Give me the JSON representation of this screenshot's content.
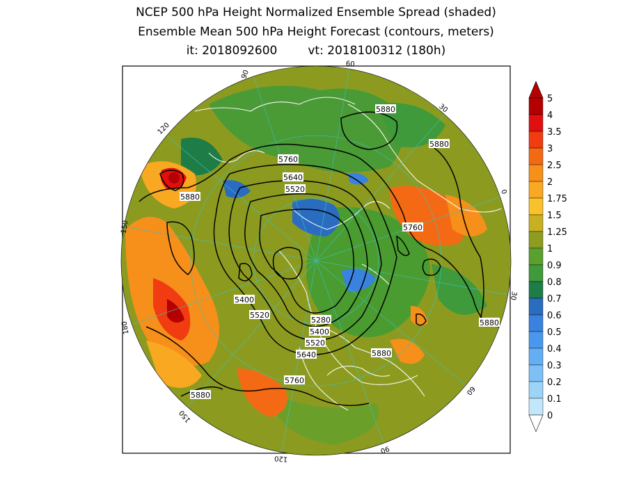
{
  "title": {
    "line1": "NCEP 500 hPa Height Normalized Ensemble Spread (shaded)",
    "line2": "Ensemble Mean 500 hPa Height Forecast (contours, meters)",
    "it": "it: 2018092600",
    "vt": "vt: 2018100312 (180h)"
  },
  "colorbar": {
    "levels": [
      "5",
      "4",
      "3.5",
      "3",
      "2.5",
      "2",
      "1.75",
      "1.5",
      "1.25",
      "1",
      "0.9",
      "0.8",
      "0.7",
      "0.6",
      "0.5",
      "0.4",
      "0.3",
      "0.2",
      "0.1",
      "0"
    ],
    "colors": [
      "#b40000",
      "#e01010",
      "#f03c10",
      "#f46a14",
      "#f6901a",
      "#f8a821",
      "#f9c12a",
      "#c8b022",
      "#8e9c20",
      "#5aa02c",
      "#3e9a3a",
      "#1e7c46",
      "#2a6cc0",
      "#3a82e0",
      "#4a98ee",
      "#64aef4",
      "#7cc0f6",
      "#9cd4f8",
      "#c4e6fa"
    ]
  },
  "contour_labels": [
    "5880",
    "5880",
    "5760",
    "5640",
    "5520",
    "5880",
    "5760",
    "5400",
    "5520",
    "5280",
    "5400",
    "5520",
    "5640",
    "5880",
    "5760",
    "5880",
    "5880"
  ],
  "grid_labels": [
    "90",
    "60",
    "30",
    "0",
    "120",
    "150",
    "180",
    "150",
    "120",
    "90",
    "60",
    "30"
  ]
}
